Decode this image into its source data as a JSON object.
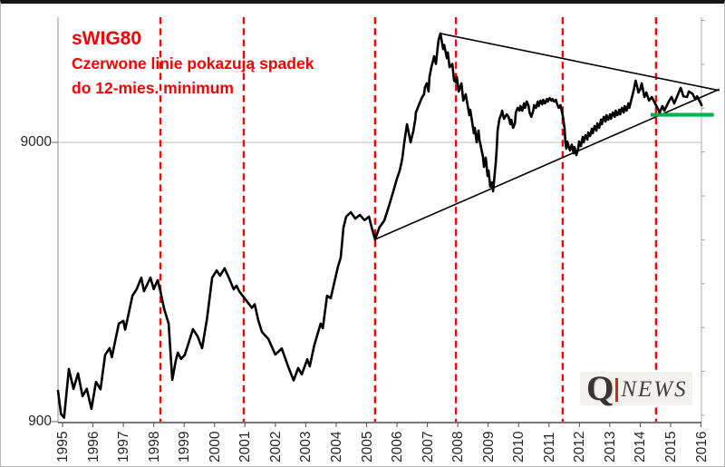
{
  "figure": {
    "title": "sWIG80",
    "subtitle_line1": "Czerwone linie pokazują spadek",
    "subtitle_line2": "do 12-mies. minimum",
    "title_color": "#ff0000"
  },
  "logo": {
    "q": "Q",
    "news": "NEWS",
    "bar_color": "#d02517"
  },
  "chart_data": {
    "type": "line",
    "title": "sWIG80",
    "annotation": "Czerwone linie pokazują spadek do 12-mies. minimum",
    "legend_position": "none",
    "y_axis": {
      "scale": "log",
      "tick_labels": [
        "900",
        "9000"
      ],
      "tick_values": [
        900,
        9000
      ],
      "range": [
        890,
        25500
      ]
    },
    "x_axis": {
      "tick_labels": [
        "1995",
        "1996",
        "1997",
        "1998",
        "1999",
        "2000",
        "2001",
        "2002",
        "2003",
        "2004",
        "2005",
        "2006",
        "2007",
        "2008",
        "2009",
        "2010",
        "2011",
        "2012",
        "2013",
        "2014",
        "2015",
        "2016"
      ],
      "range": [
        1994.85,
        2016.05
      ]
    },
    "grid": {
      "horizontal_gridlines_at": [
        9000
      ]
    },
    "red_dashed_lines": {
      "label": "spadek do 12-mies. minimum",
      "color": "#ff0000",
      "years": [
        1998.22,
        2000.96,
        2005.28,
        2007.94,
        2011.45,
        2014.52
      ]
    },
    "trendlines": [
      {
        "name": "triangle-upper-trendline",
        "points": [
          [
            2007.43,
            22080
          ],
          [
            2016.6,
            13800
          ]
        ]
      },
      {
        "name": "triangle-lower-trendline",
        "points": [
          [
            2005.28,
            4045
          ],
          [
            2016.6,
            13950
          ]
        ]
      }
    ],
    "support_line": {
      "color": "#00b050",
      "value": 11300,
      "from_year": 2014.34,
      "to_year": 2016.42
    },
    "series": [
      {
        "name": "sWIG80",
        "color": "#000000",
        "points": [
          [
            1994.85,
            1160
          ],
          [
            1994.95,
            960
          ],
          [
            1995.05,
            930
          ],
          [
            1995.21,
            1390
          ],
          [
            1995.36,
            1180
          ],
          [
            1995.51,
            1340
          ],
          [
            1995.66,
            1110
          ],
          [
            1995.8,
            1180
          ],
          [
            1995.95,
            1000
          ],
          [
            1996.1,
            1250
          ],
          [
            1996.25,
            1175
          ],
          [
            1996.4,
            1560
          ],
          [
            1996.55,
            1650
          ],
          [
            1996.62,
            1530
          ],
          [
            1996.85,
            2020
          ],
          [
            1997.0,
            2065
          ],
          [
            1997.06,
            1920
          ],
          [
            1997.3,
            2545
          ],
          [
            1997.44,
            2685
          ],
          [
            1997.59,
            2950
          ],
          [
            1997.68,
            2640
          ],
          [
            1997.89,
            2950
          ],
          [
            1998.0,
            2685
          ],
          [
            1998.13,
            2890
          ],
          [
            1998.22,
            2640
          ],
          [
            1998.34,
            2283
          ],
          [
            1998.49,
            2020
          ],
          [
            1998.61,
            1270
          ],
          [
            1998.72,
            1480
          ],
          [
            1998.79,
            1590
          ],
          [
            1998.9,
            1510
          ],
          [
            1999.02,
            1560
          ],
          [
            1999.29,
            1930
          ],
          [
            1999.44,
            1820
          ],
          [
            1999.59,
            1650
          ],
          [
            1999.75,
            2100
          ],
          [
            1999.92,
            2950
          ],
          [
            2000.07,
            3130
          ],
          [
            2000.18,
            3000
          ],
          [
            2000.33,
            3185
          ],
          [
            2000.48,
            2930
          ],
          [
            2000.63,
            2680
          ],
          [
            2000.72,
            2760
          ],
          [
            2000.81,
            2640
          ],
          [
            2000.96,
            2510
          ],
          [
            2001.23,
            2300
          ],
          [
            2001.32,
            2370
          ],
          [
            2001.44,
            2070
          ],
          [
            2001.56,
            1885
          ],
          [
            2001.77,
            1780
          ],
          [
            2002.0,
            1565
          ],
          [
            2002.21,
            1645
          ],
          [
            2002.42,
            1420
          ],
          [
            2002.6,
            1265
          ],
          [
            2002.75,
            1400
          ],
          [
            2002.87,
            1330
          ],
          [
            2003.05,
            1505
          ],
          [
            2003.13,
            1420
          ],
          [
            2003.28,
            1690
          ],
          [
            2003.49,
            2020
          ],
          [
            2003.56,
            1945
          ],
          [
            2003.7,
            2545
          ],
          [
            2003.82,
            2490
          ],
          [
            2004.06,
            3240
          ],
          [
            2004.15,
            3485
          ],
          [
            2004.24,
            4460
          ],
          [
            2004.33,
            4880
          ],
          [
            2004.48,
            5060
          ],
          [
            2004.63,
            4800
          ],
          [
            2004.78,
            4950
          ],
          [
            2004.93,
            4740
          ],
          [
            2005.08,
            4880
          ],
          [
            2005.17,
            4455
          ],
          [
            2005.28,
            4045
          ],
          [
            2005.42,
            4460
          ],
          [
            2005.58,
            4720
          ],
          [
            2005.73,
            5300
          ],
          [
            2005.88,
            6010
          ],
          [
            2006.0,
            6675
          ],
          [
            2006.09,
            7140
          ],
          [
            2006.15,
            7640
          ],
          [
            2006.18,
            7965
          ],
          [
            2006.24,
            9000
          ],
          [
            2006.33,
            10450
          ],
          [
            2006.39,
            9695
          ],
          [
            2006.45,
            9000
          ],
          [
            2006.54,
            9915
          ],
          [
            2006.6,
            10850
          ],
          [
            2006.62,
            11510
          ],
          [
            2006.74,
            12410
          ],
          [
            2006.83,
            13075
          ],
          [
            2006.89,
            13370
          ],
          [
            2006.92,
            14180
          ],
          [
            2006.98,
            14640
          ],
          [
            2007.04,
            13690
          ],
          [
            2007.07,
            15430
          ],
          [
            2007.13,
            16730
          ],
          [
            2007.19,
            17730
          ],
          [
            2007.22,
            18290
          ],
          [
            2007.28,
            17180
          ],
          [
            2007.34,
            19750
          ],
          [
            2007.37,
            21000
          ],
          [
            2007.43,
            22080
          ],
          [
            2007.52,
            19420
          ],
          [
            2007.55,
            20100
          ],
          [
            2007.64,
            18030
          ],
          [
            2007.67,
            18900
          ],
          [
            2007.73,
            16730
          ],
          [
            2007.82,
            17180
          ],
          [
            2007.88,
            14970
          ],
          [
            2007.94,
            14740
          ],
          [
            2007.97,
            15430
          ],
          [
            2008.03,
            13690
          ],
          [
            2008.12,
            14640
          ],
          [
            2008.18,
            12690
          ],
          [
            2008.26,
            13370
          ],
          [
            2008.38,
            11260
          ],
          [
            2008.41,
            11780
          ],
          [
            2008.53,
            9695
          ],
          [
            2008.56,
            10140
          ],
          [
            2008.62,
            9000
          ],
          [
            2008.68,
            9915
          ],
          [
            2008.71,
            9210
          ],
          [
            2008.83,
            7965
          ],
          [
            2008.86,
            7355
          ],
          [
            2008.92,
            7925
          ],
          [
            2008.98,
            6825
          ],
          [
            2009.01,
            7140
          ],
          [
            2009.07,
            6240
          ],
          [
            2009.13,
            6470
          ],
          [
            2009.16,
            6010
          ],
          [
            2009.25,
            7640
          ],
          [
            2009.28,
            8540
          ],
          [
            2009.31,
            9915
          ],
          [
            2009.37,
            10930
          ],
          [
            2009.43,
            11340
          ],
          [
            2009.46,
            11690
          ],
          [
            2009.52,
            10930
          ],
          [
            2009.61,
            11340
          ],
          [
            2009.67,
            11100
          ],
          [
            2009.73,
            10450
          ],
          [
            2009.76,
            10850
          ],
          [
            2009.82,
            10140
          ],
          [
            2009.88,
            10530
          ],
          [
            2009.91,
            11510
          ],
          [
            2009.97,
            11960
          ],
          [
            2010.03,
            11690
          ],
          [
            2010.06,
            12140
          ],
          [
            2010.12,
            11690
          ],
          [
            2010.18,
            12410
          ],
          [
            2010.21,
            11960
          ],
          [
            2010.27,
            12600
          ],
          [
            2010.33,
            12140
          ],
          [
            2010.36,
            11510
          ],
          [
            2010.42,
            11100
          ],
          [
            2010.48,
            11690
          ],
          [
            2010.51,
            12230
          ],
          [
            2010.57,
            11960
          ],
          [
            2010.63,
            12600
          ],
          [
            2010.66,
            12140
          ],
          [
            2010.72,
            12690
          ],
          [
            2010.78,
            12320
          ],
          [
            2010.81,
            12780
          ],
          [
            2010.87,
            12410
          ],
          [
            2010.93,
            12870
          ],
          [
            2010.96,
            12600
          ],
          [
            2011.02,
            12960
          ],
          [
            2011.08,
            12690
          ],
          [
            2011.11,
            12870
          ],
          [
            2011.17,
            12600
          ],
          [
            2011.23,
            12780
          ],
          [
            2011.26,
            12410
          ],
          [
            2011.32,
            11960
          ],
          [
            2011.38,
            12230
          ],
          [
            2011.41,
            11780
          ],
          [
            2011.45,
            11260
          ],
          [
            2011.51,
            10140
          ],
          [
            2011.54,
            9000
          ],
          [
            2011.57,
            8540
          ],
          [
            2011.6,
            9070
          ],
          [
            2011.69,
            8420
          ],
          [
            2011.75,
            8830
          ],
          [
            2011.81,
            8230
          ],
          [
            2011.84,
            8660
          ],
          [
            2011.9,
            8100
          ],
          [
            2011.96,
            8540
          ],
          [
            2011.99,
            9070
          ],
          [
            2012.05,
            8730
          ],
          [
            2012.11,
            9410
          ],
          [
            2012.14,
            9000
          ],
          [
            2012.2,
            9550
          ],
          [
            2012.26,
            9210
          ],
          [
            2012.29,
            9770
          ],
          [
            2012.35,
            9480
          ],
          [
            2012.41,
            10070
          ],
          [
            2012.44,
            9695
          ],
          [
            2012.5,
            10290
          ],
          [
            2012.56,
            9915
          ],
          [
            2012.59,
            10530
          ],
          [
            2012.65,
            10140
          ],
          [
            2012.71,
            10850
          ],
          [
            2012.74,
            10450
          ],
          [
            2012.8,
            11100
          ],
          [
            2012.86,
            10690
          ],
          [
            2012.89,
            11260
          ],
          [
            2012.95,
            10850
          ],
          [
            2013.01,
            11340
          ],
          [
            2013.04,
            10930
          ],
          [
            2013.1,
            11510
          ],
          [
            2013.16,
            11100
          ],
          [
            2013.19,
            11690
          ],
          [
            2013.25,
            11260
          ],
          [
            2013.31,
            11780
          ],
          [
            2013.34,
            11340
          ],
          [
            2013.4,
            11960
          ],
          [
            2013.46,
            11510
          ],
          [
            2013.49,
            12140
          ],
          [
            2013.55,
            11690
          ],
          [
            2013.61,
            12410
          ],
          [
            2013.64,
            11960
          ],
          [
            2013.7,
            12690
          ],
          [
            2013.73,
            13075
          ],
          [
            2013.79,
            13900
          ],
          [
            2013.85,
            14970
          ],
          [
            2013.91,
            14100
          ],
          [
            2013.94,
            13580
          ],
          [
            2014.0,
            13920
          ],
          [
            2014.05,
            14640
          ],
          [
            2014.14,
            13075
          ],
          [
            2014.2,
            13580
          ],
          [
            2014.29,
            12690
          ],
          [
            2014.38,
            13075
          ],
          [
            2014.52,
            12230
          ],
          [
            2014.64,
            11510
          ],
          [
            2014.73,
            12140
          ],
          [
            2014.79,
            11690
          ],
          [
            2014.94,
            12600
          ],
          [
            2015.03,
            13075
          ],
          [
            2015.12,
            12410
          ],
          [
            2015.24,
            13370
          ],
          [
            2015.33,
            14100
          ],
          [
            2015.42,
            13160
          ],
          [
            2015.54,
            13075
          ],
          [
            2015.6,
            13690
          ],
          [
            2015.72,
            13440
          ],
          [
            2015.81,
            12830
          ],
          [
            2015.87,
            13160
          ],
          [
            2015.96,
            12600
          ],
          [
            2016.02,
            12230
          ]
        ]
      }
    ]
  }
}
